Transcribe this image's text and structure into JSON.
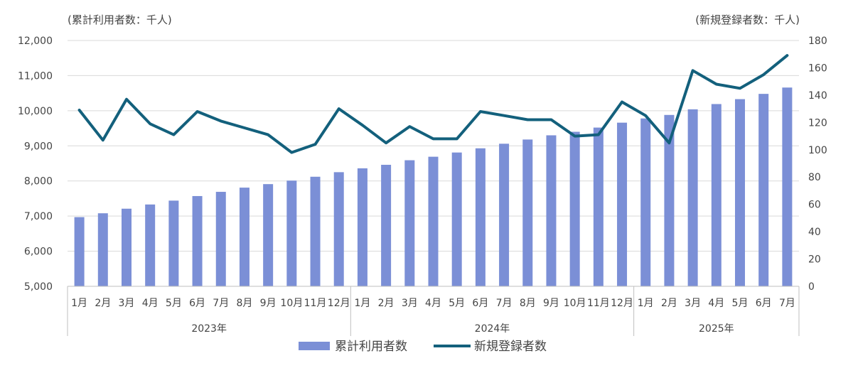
{
  "chart_data": {
    "type": "bar",
    "left_axis_label": "(累計利用者数：千人)",
    "right_axis_label": "(新規登録者数：千人)",
    "y_left": {
      "min": 5000,
      "max": 12000,
      "ticks": [
        "5,000",
        "6,000",
        "7,000",
        "8,000",
        "9,000",
        "10,000",
        "11,000",
        "12,000"
      ]
    },
    "y_right": {
      "min": 0,
      "max": 180,
      "ticks": [
        "0",
        "20",
        "40",
        "60",
        "80",
        "100",
        "120",
        "140",
        "160",
        "180"
      ]
    },
    "years": [
      {
        "label": "2023年",
        "months": 12
      },
      {
        "label": "2024年",
        "months": 12
      },
      {
        "label": "2025年",
        "months": 7
      }
    ],
    "categories": [
      "1月",
      "2月",
      "3月",
      "4月",
      "5月",
      "6月",
      "7月",
      "8月",
      "9月",
      "10月",
      "11月",
      "12月",
      "1月",
      "2月",
      "3月",
      "4月",
      "5月",
      "6月",
      "7月",
      "8月",
      "9月",
      "10月",
      "11月",
      "12月",
      "1月",
      "2月",
      "3月",
      "4月",
      "5月",
      "6月",
      "7月"
    ],
    "series": [
      {
        "name": "累計利用者数",
        "type": "bar",
        "axis": "left",
        "color": "#7b8fd6",
        "values": [
          6970,
          7080,
          7210,
          7330,
          7440,
          7570,
          7690,
          7810,
          7910,
          8010,
          8120,
          8250,
          8360,
          8460,
          8590,
          8690,
          8810,
          8930,
          9060,
          9180,
          9300,
          9400,
          9520,
          9660,
          9780,
          9880,
          10040,
          10190,
          10330,
          10480,
          10660
        ]
      },
      {
        "name": "新規登録者数",
        "type": "line",
        "axis": "right",
        "color": "#13607c",
        "values": [
          129,
          107,
          137,
          119,
          111,
          128,
          121,
          116,
          111,
          98,
          104,
          130,
          118,
          105,
          117,
          108,
          108,
          128,
          125,
          122,
          122,
          110,
          111,
          135,
          125,
          105,
          158,
          148,
          145,
          155,
          169
        ]
      }
    ],
    "legend": {
      "placement": "bottom-center"
    },
    "gridlines": true
  }
}
